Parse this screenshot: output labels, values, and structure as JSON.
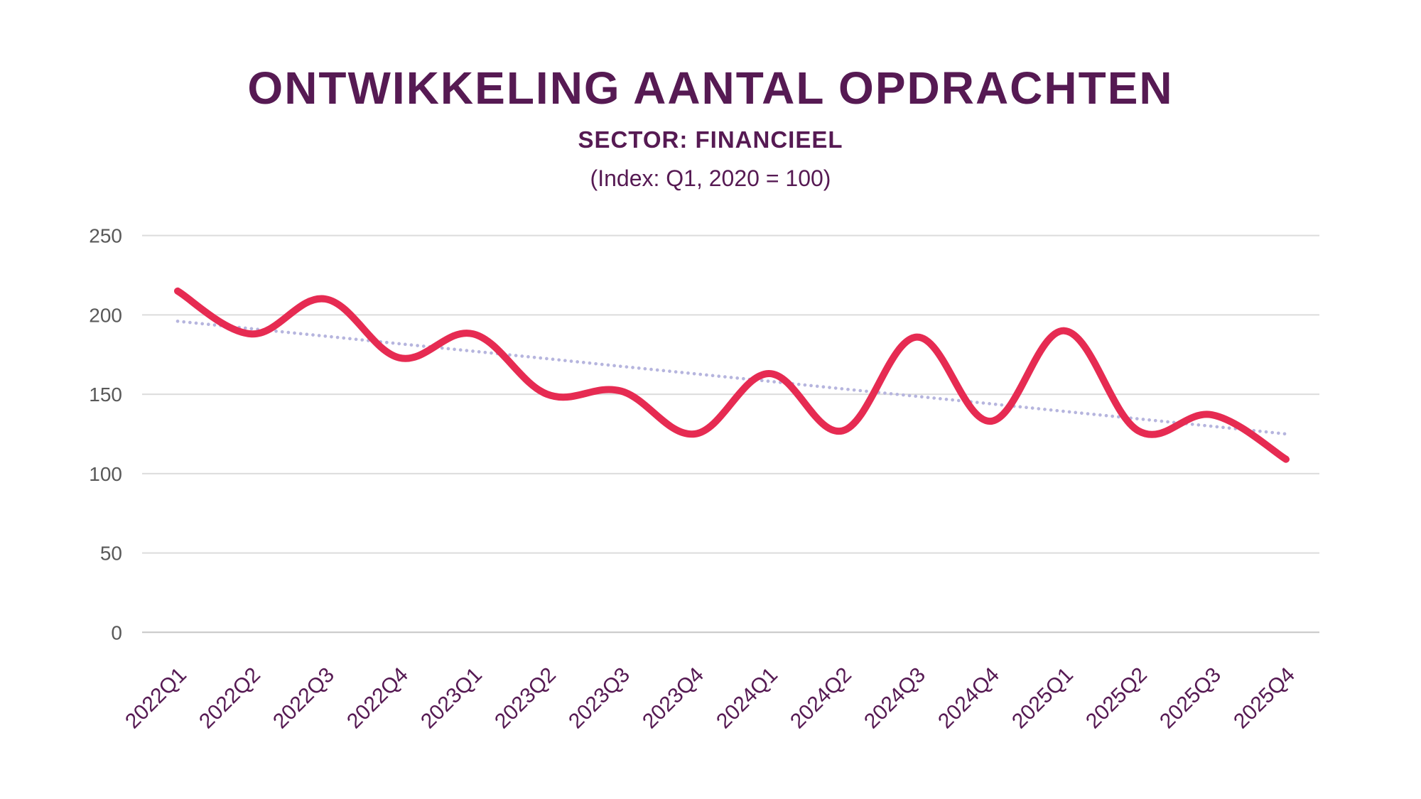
{
  "header": {
    "title": "ONTWIKKELING AANTAL OPDRACHTEN",
    "subtitle": "SECTOR: FINANCIEEL",
    "index_note": "(Index: Q1, 2020 = 100)"
  },
  "chart_data": {
    "type": "line",
    "categories": [
      "2022Q1",
      "2022Q2",
      "2022Q3",
      "2022Q4",
      "2023Q1",
      "2023Q2",
      "2023Q3",
      "2023Q4",
      "2024Q1",
      "2024Q2",
      "2024Q3",
      "2024Q4",
      "2025Q1",
      "2025Q2",
      "2025Q3",
      "2025Q4"
    ],
    "series": [
      {
        "name": "aantal-opdrachten-index",
        "style": "solid-smooth",
        "color": "#e62b52",
        "values": [
          215,
          188,
          210,
          173,
          188,
          150,
          152,
          125,
          163,
          127,
          186,
          133,
          190,
          127,
          137,
          109
        ]
      },
      {
        "name": "trendlijn",
        "style": "dotted-straight",
        "color": "#b6b5de",
        "values": [
          196,
          191.3,
          186.6,
          181.8,
          177.1,
          172.4,
          167.6,
          162.9,
          158.2,
          153.4,
          148.7,
          144.0,
          139.2,
          134.5,
          129.8,
          125
        ]
      }
    ],
    "title": "ONTWIKKELING AANTAL OPDRACHTEN",
    "subtitle": "SECTOR: FINANCIEEL",
    "annotation": "(Index: Q1, 2020 = 100)",
    "xlabel": "",
    "ylabel": "",
    "ylim": [
      0,
      250
    ],
    "yticks": [
      0,
      50,
      100,
      150,
      200,
      250
    ],
    "grid": true,
    "legend": "none"
  },
  "colors": {
    "series_line": "#e62b52",
    "trend_line": "#b6b5de",
    "title_text": "#561a53",
    "x_tick_text": "#561a53",
    "y_tick_text": "#595959",
    "gridline": "#dcdcdc",
    "zero_line": "#c6c6c6",
    "background": "#ffffff"
  }
}
